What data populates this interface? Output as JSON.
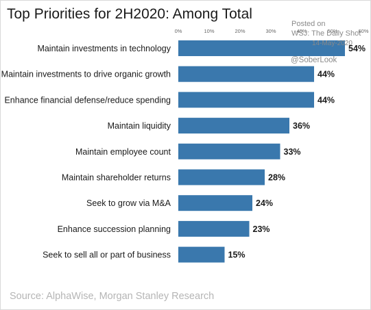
{
  "title": "Top Priorities for 2H2020: Among Total",
  "source": "Source: AlphaWise, Morgan Stanley Research",
  "watermark": {
    "posted": "Posted on",
    "dailyshot": "WSJ: The Daily Shot",
    "date": "14-May-2020",
    "handle": "@SoberLook"
  },
  "colors": {
    "bar": "#3a78ad",
    "text": "#1a1a1a",
    "source": "#b5b5b5"
  },
  "chart_data": {
    "type": "bar",
    "orientation": "horizontal",
    "categories": [
      "Maintain investments in technology",
      "Maintain investments to drive organic growth",
      "Enhance financial defense/reduce spending",
      "Maintain liquidity",
      "Maintain employee count",
      "Maintain shareholder returns",
      "Seek to grow via M&A",
      "Enhance succession planning",
      "Seek to sell all or part of business"
    ],
    "values": [
      54,
      44,
      44,
      36,
      33,
      28,
      24,
      23,
      15
    ],
    "value_labels": [
      "54%",
      "44%",
      "44%",
      "36%",
      "33%",
      "28%",
      "24%",
      "23%",
      "15%"
    ],
    "xlim": [
      0,
      60
    ],
    "xticks": [
      0,
      10,
      20,
      30,
      40,
      50,
      60
    ],
    "xtick_labels": [
      "0%",
      "10%",
      "20%",
      "30%",
      "40%",
      "50%",
      "60%"
    ],
    "tick_position": "top",
    "grid": false
  }
}
